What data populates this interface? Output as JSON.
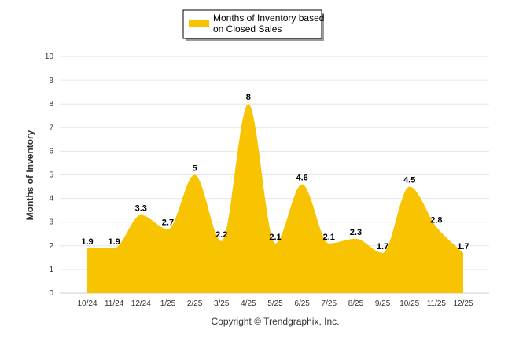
{
  "chart_data": {
    "type": "area",
    "categories": [
      "10/24",
      "11/24",
      "12/24",
      "1/25",
      "2/25",
      "3/25",
      "4/25",
      "5/25",
      "6/25",
      "7/25",
      "8/25",
      "9/25",
      "10/25",
      "11/25",
      "12/25"
    ],
    "series": [
      {
        "name_lines": [
          "Months of Inventory based",
          "on Closed Sales"
        ],
        "values": [
          1.9,
          1.9,
          3.3,
          2.7,
          5,
          2.2,
          8,
          2.1,
          4.6,
          2.1,
          2.3,
          1.7,
          4.5,
          2.8,
          1.7
        ],
        "data_labels": [
          "1.9",
          "1.9",
          "3.3",
          "2.7",
          "5",
          "2.2",
          "8",
          "2.1",
          "4.6",
          "2.1",
          "2.3",
          "1.7",
          "4.5",
          "2.8",
          "1.7"
        ],
        "color": "#f8c300"
      }
    ],
    "ylabel": "Months of Inventory",
    "ylim": [
      0,
      10
    ],
    "yticks": [
      "0",
      "1",
      "2",
      "3",
      "4",
      "5",
      "6",
      "7",
      "8",
      "9",
      "10"
    ],
    "grid": true,
    "legend_position": "top-center",
    "footer": "Copyright © Trendgraphix, Inc."
  },
  "colors": {
    "fill": "#f8c300",
    "grid": "#e6e6e6",
    "legend_border": "#000000"
  }
}
